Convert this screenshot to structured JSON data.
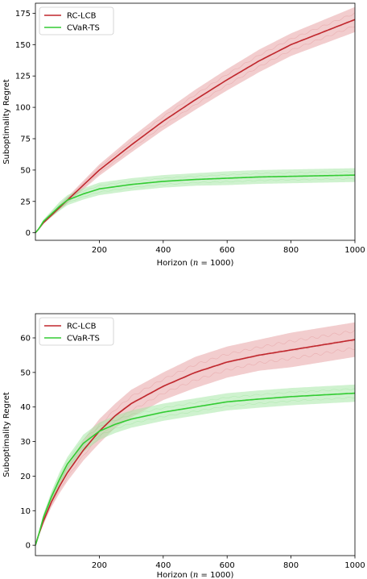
{
  "chart_data": [
    {
      "type": "line",
      "xlabel": "Horizon (n = 1000)",
      "ylabel": "Suboptimality Regret",
      "xlim": [
        0,
        1000
      ],
      "ylim": [
        -6,
        183
      ],
      "xticks": [
        200,
        400,
        600,
        800,
        1000
      ],
      "yticks": [
        0,
        25,
        50,
        75,
        100,
        125,
        150,
        175
      ],
      "legend_position": "upper left",
      "series": [
        {
          "name": "RC-LCB",
          "color": "#c0272d",
          "band_color": "#e8a4a6",
          "x": [
            0,
            10,
            25,
            50,
            75,
            100,
            150,
            200,
            300,
            400,
            500,
            600,
            700,
            800,
            900,
            1000
          ],
          "y": [
            0,
            3,
            8,
            14,
            20,
            26,
            38,
            50,
            70,
            89,
            106,
            122,
            137,
            150,
            160,
            170
          ],
          "band": [
            0,
            0.5,
            1,
            1.5,
            2,
            2.5,
            3.5,
            4.5,
            6,
            7,
            8,
            8.5,
            9,
            9,
            9.5,
            10
          ]
        },
        {
          "name": "CVaR-TS",
          "color": "#33cc33",
          "band_color": "#a8e8a8",
          "x": [
            0,
            10,
            25,
            50,
            75,
            100,
            150,
            200,
            300,
            400,
            500,
            600,
            700,
            800,
            900,
            1000
          ],
          "y": [
            0,
            3,
            9,
            15,
            21,
            26,
            31,
            35,
            38.5,
            41,
            42.5,
            43.5,
            44.5,
            45,
            45.5,
            46
          ],
          "band": [
            0,
            0.5,
            1.5,
            2.5,
            3.5,
            4,
            4.5,
            5,
            5,
            5,
            5,
            5.5,
            5.5,
            5.5,
            5.5,
            5.5
          ]
        }
      ]
    },
    {
      "type": "line",
      "xlabel": "Horizon (n = 1000)",
      "ylabel": "Suboptimality Regret",
      "xlim": [
        0,
        1000
      ],
      "ylim": [
        -3,
        67
      ],
      "xticks": [
        200,
        400,
        600,
        800,
        1000
      ],
      "yticks": [
        0,
        10,
        20,
        30,
        40,
        50,
        60
      ],
      "legend_position": "upper left",
      "series": [
        {
          "name": "RC-LCB",
          "color": "#c0272d",
          "band_color": "#e8a4a6",
          "x": [
            0,
            10,
            25,
            50,
            75,
            100,
            150,
            200,
            250,
            300,
            400,
            500,
            600,
            700,
            800,
            900,
            1000
          ],
          "y": [
            0,
            3,
            7,
            12.5,
            17,
            21,
            27.5,
            33,
            37.5,
            41,
            46,
            50,
            53,
            55,
            56.5,
            58,
            59.5
          ],
          "band": [
            0,
            0.5,
            1,
            1.5,
            2,
            2.5,
            3,
            3.5,
            3.5,
            4,
            4,
            4.5,
            4.5,
            4.5,
            5,
            5,
            5
          ]
        },
        {
          "name": "CVaR-TS",
          "color": "#33cc33",
          "band_color": "#a8e8a8",
          "x": [
            0,
            10,
            25,
            50,
            75,
            100,
            150,
            200,
            250,
            300,
            400,
            500,
            600,
            700,
            800,
            900,
            1000
          ],
          "y": [
            0,
            3,
            8,
            14,
            19,
            23.5,
            29.5,
            33,
            35,
            36.5,
            38.5,
            40,
            41.5,
            42.3,
            43,
            43.5,
            44
          ],
          "band": [
            0,
            0.5,
            1,
            1.5,
            2,
            2,
            2.5,
            2.5,
            2.5,
            2.5,
            2.5,
            2.5,
            2.5,
            2.5,
            2.5,
            2.5,
            2.5
          ]
        }
      ]
    }
  ]
}
